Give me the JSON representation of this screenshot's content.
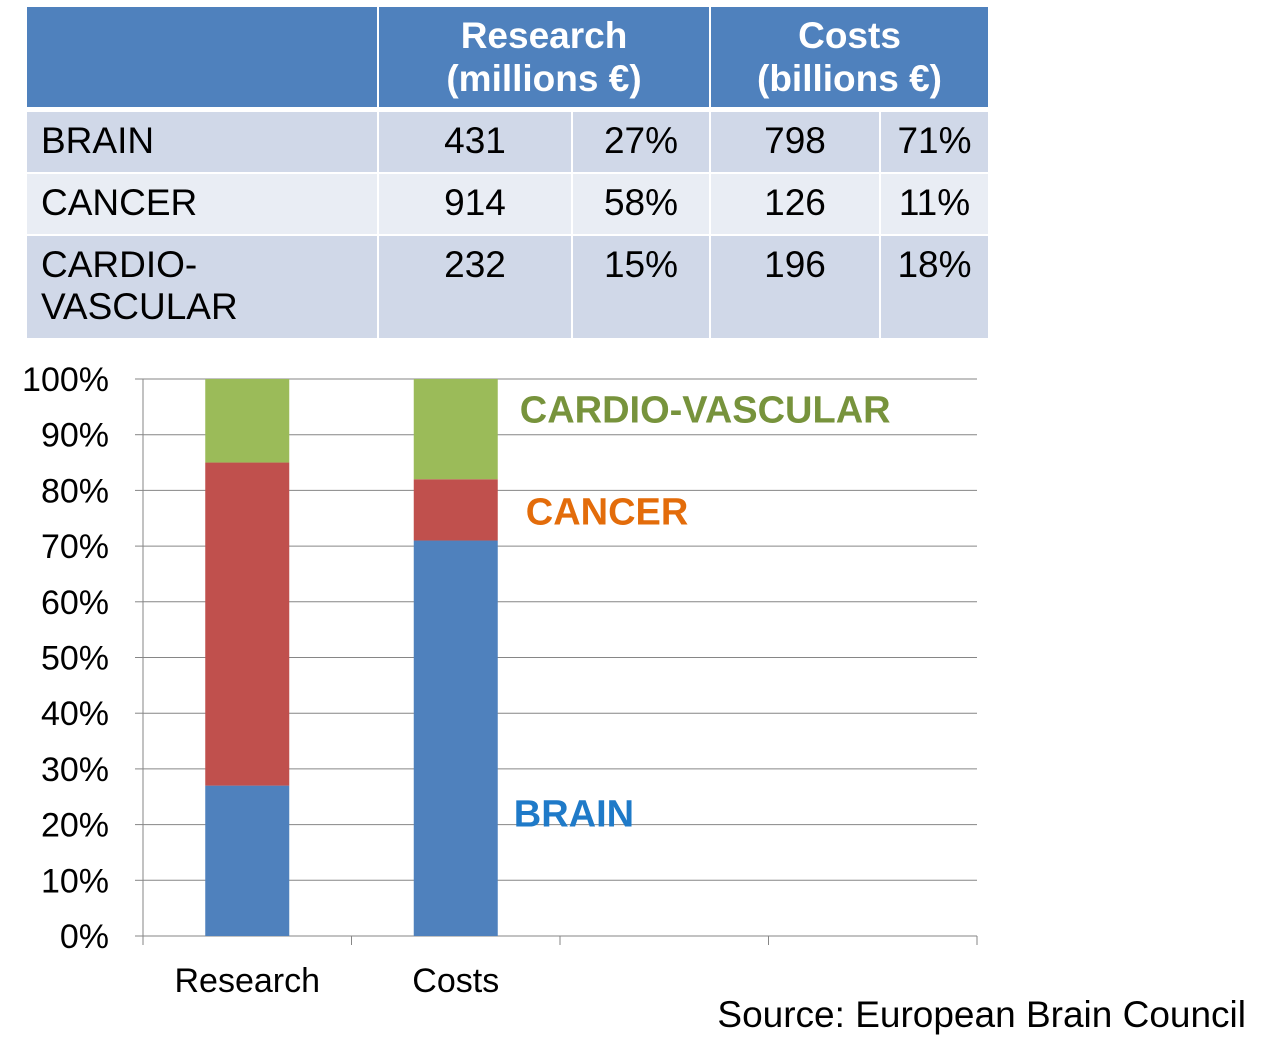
{
  "table": {
    "headers": [
      {
        "line1": "",
        "line2": ""
      },
      {
        "line1": "Research",
        "line2": "(millions €)"
      },
      {
        "line1": "Costs",
        "line2": "(billions €)"
      }
    ],
    "rows": [
      {
        "label": "BRAIN",
        "research": "431",
        "research_pct": "27%",
        "costs": "798",
        "costs_pct": "71%"
      },
      {
        "label": "CANCER",
        "research": "914",
        "research_pct": "58%",
        "costs": "126",
        "costs_pct": "11%"
      },
      {
        "label_line1": "CARDIO-",
        "label_line2": "VASCULAR",
        "research": "232",
        "research_pct": "15%",
        "costs": "196",
        "costs_pct": "18%"
      }
    ]
  },
  "chart_data": {
    "type": "bar",
    "stacked": true,
    "categories": [
      "Research",
      "Costs"
    ],
    "series": [
      {
        "name": "BRAIN",
        "values": [
          27,
          71
        ],
        "color": "#4f81bd",
        "label_color": "#1f7ac8"
      },
      {
        "name": "CANCER",
        "values": [
          58,
          11
        ],
        "color": "#c0504d",
        "label_color": "#e36c0a"
      },
      {
        "name": "CARDIO-VASCULAR",
        "values": [
          15,
          18
        ],
        "color": "#9bbb59",
        "label_color": "#77933c"
      }
    ],
    "ylim": [
      0,
      100
    ],
    "y_ticks": [
      "0%",
      "10%",
      "20%",
      "30%",
      "40%",
      "50%",
      "60%",
      "70%",
      "80%",
      "90%",
      "100%"
    ],
    "grid": true
  },
  "source": "Source: European Brain Council"
}
